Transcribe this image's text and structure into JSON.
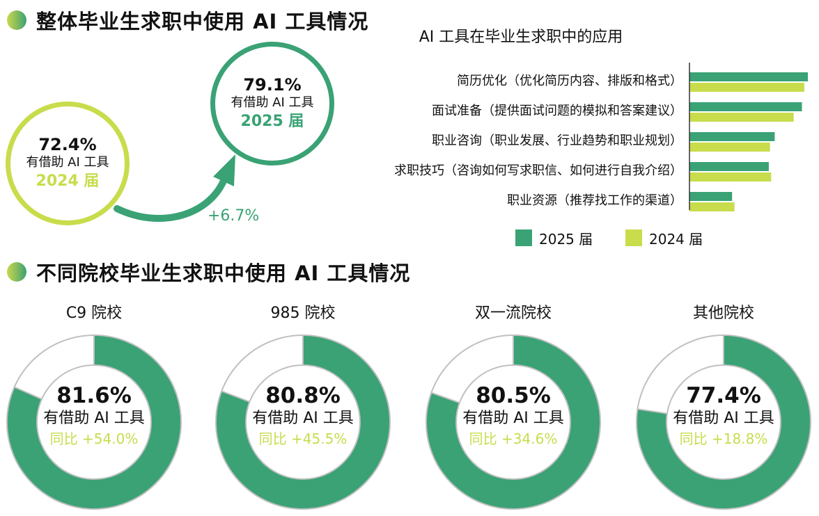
{
  "section1": {
    "title": "整体毕业生求职中使用 AI 工具情况"
  },
  "section2": {
    "title": "不同院校毕业生求职中使用 AI 工具情况"
  },
  "overall": {
    "y2024": {
      "pct": "72.4%",
      "label": "有借助 AI 工具",
      "year": "2024 届"
    },
    "y2025": {
      "pct": "79.1%",
      "label": "有借助 AI 工具",
      "year": "2025 届"
    },
    "growth": "+6.7%"
  },
  "colors": {
    "dark_green": "#3aa275",
    "light_green": "#c8dc4c",
    "ring_remainder": "#ffffff",
    "ring_outline": "#c0c0c0"
  },
  "chart_data": [
    {
      "type": "bar",
      "orientation": "horizontal",
      "title": "AI 工具在毕业生求职中的应用",
      "categories": [
        "简历优化（优化简历内容、排版和格式）",
        "面试准备（提供面试问题的模拟和答案建议）",
        "职业咨询（职业发展、行业趋势和职业规划）",
        "求职技巧（咨询如何写求职信、如何进行自我介绍）",
        "职业资源（推荐找工作的渠道）"
      ],
      "series": [
        {
          "name": "2025 届",
          "color": "#3aa275",
          "values": [
            100,
            95,
            72,
            67,
            36
          ]
        },
        {
          "name": "2024 届",
          "color": "#c8dc4c",
          "values": [
            97,
            88,
            68,
            69,
            38
          ]
        }
      ],
      "legend": "bottom"
    },
    {
      "type": "pie",
      "variant": "donut",
      "items": [
        {
          "title": "C9 院校",
          "value": 81.6,
          "pct": "81.6%",
          "label": "有借助 AI 工具",
          "yoy": "同比 +54.0%"
        },
        {
          "title": "985 院校",
          "value": 80.8,
          "pct": "80.8%",
          "label": "有借助 AI 工具",
          "yoy": "同比 +45.5%"
        },
        {
          "title": "双一流院校",
          "value": 80.5,
          "pct": "80.5%",
          "label": "有借助 AI 工具",
          "yoy": "同比 +34.6%"
        },
        {
          "title": "其他院校",
          "value": 77.4,
          "pct": "77.4%",
          "label": "有借助 AI 工具",
          "yoy": "同比 +18.8%"
        }
      ]
    }
  ]
}
